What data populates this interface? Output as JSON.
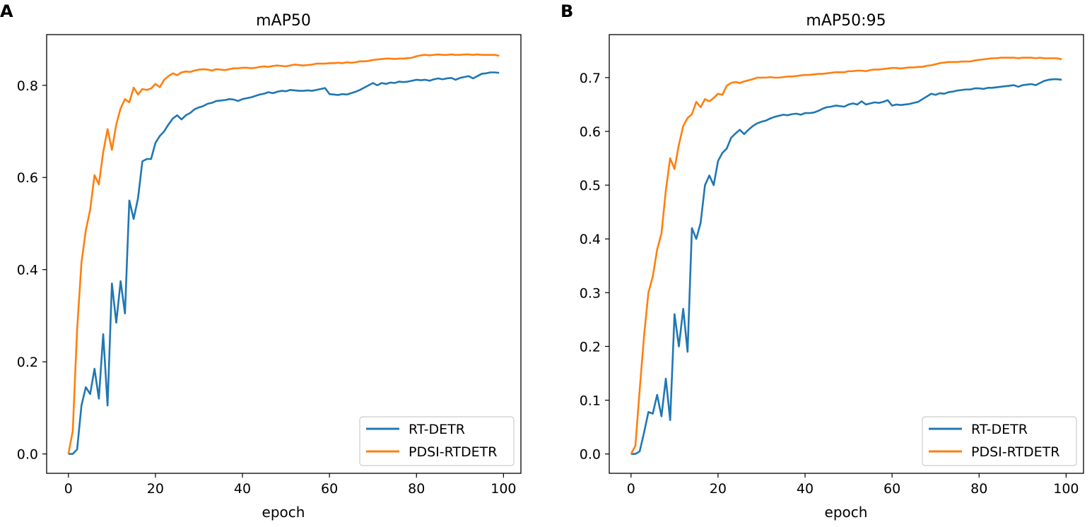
{
  "colors": {
    "rt_detr": "#1f77b4",
    "pdsi_rtdetr": "#ff7f0e",
    "axes": "#000000",
    "legend_border": "#cccccc"
  },
  "chart_data": [
    {
      "type": "line",
      "panel": "A",
      "title": "mAP50",
      "xlabel": "epoch",
      "ylabel": "",
      "xlim": [
        -5,
        104
      ],
      "ylim": [
        -0.042,
        0.91
      ],
      "xticks": [
        0,
        20,
        40,
        60,
        80,
        100
      ],
      "xtick_labels": [
        "0",
        "20",
        "40",
        "60",
        "80",
        "100"
      ],
      "yticks": [
        0.0,
        0.2,
        0.4,
        0.6,
        0.8
      ],
      "ytick_labels": [
        "0.0",
        "0.2",
        "0.4",
        "0.6",
        "0.8"
      ],
      "legend_position": "bottom-right",
      "grid": false,
      "series": [
        {
          "name": "RT-DETR",
          "color": "#1f77b4",
          "x": [
            0,
            1,
            2,
            3,
            4,
            5,
            6,
            7,
            8,
            9,
            10,
            11,
            12,
            13,
            14,
            15,
            16,
            17,
            18,
            19,
            20,
            21,
            22,
            23,
            24,
            25,
            26,
            27,
            28,
            29,
            30,
            31,
            32,
            33,
            34,
            35,
            36,
            37,
            38,
            39,
            40,
            41,
            42,
            43,
            44,
            45,
            46,
            47,
            48,
            49,
            50,
            51,
            52,
            53,
            54,
            55,
            56,
            57,
            58,
            59,
            60,
            61,
            62,
            63,
            64,
            65,
            66,
            67,
            68,
            69,
            70,
            71,
            72,
            73,
            74,
            75,
            76,
            77,
            78,
            79,
            80,
            81,
            82,
            83,
            84,
            85,
            86,
            87,
            88,
            89,
            90,
            91,
            92,
            93,
            94,
            95,
            96,
            97,
            98,
            99
          ],
          "values": [
            0,
            0,
            0.01,
            0.105,
            0.145,
            0.13,
            0.185,
            0.12,
            0.26,
            0.105,
            0.37,
            0.285,
            0.375,
            0.305,
            0.55,
            0.51,
            0.555,
            0.635,
            0.64,
            0.64,
            0.675,
            0.69,
            0.7,
            0.715,
            0.728,
            0.735,
            0.726,
            0.735,
            0.74,
            0.748,
            0.752,
            0.755,
            0.76,
            0.762,
            0.766,
            0.767,
            0.768,
            0.77,
            0.769,
            0.766,
            0.77,
            0.772,
            0.774,
            0.777,
            0.78,
            0.782,
            0.785,
            0.783,
            0.786,
            0.788,
            0.787,
            0.79,
            0.789,
            0.788,
            0.788,
            0.789,
            0.788,
            0.79,
            0.792,
            0.794,
            0.781,
            0.78,
            0.779,
            0.781,
            0.78,
            0.783,
            0.786,
            0.79,
            0.795,
            0.8,
            0.805,
            0.8,
            0.805,
            0.803,
            0.806,
            0.805,
            0.808,
            0.807,
            0.808,
            0.81,
            0.812,
            0.811,
            0.812,
            0.81,
            0.813,
            0.815,
            0.813,
            0.815,
            0.816,
            0.812,
            0.816,
            0.818,
            0.82,
            0.815,
            0.82,
            0.825,
            0.826,
            0.828,
            0.828,
            0.827
          ]
        },
        {
          "name": "PDSI-RTDETR",
          "color": "#ff7f0e",
          "x": [
            0,
            1,
            2,
            3,
            4,
            5,
            6,
            7,
            8,
            9,
            10,
            11,
            12,
            13,
            14,
            15,
            16,
            17,
            18,
            19,
            20,
            21,
            22,
            23,
            24,
            25,
            26,
            27,
            28,
            29,
            30,
            31,
            32,
            33,
            34,
            35,
            36,
            37,
            38,
            39,
            40,
            41,
            42,
            43,
            44,
            45,
            46,
            47,
            48,
            49,
            50,
            51,
            52,
            53,
            54,
            55,
            56,
            57,
            58,
            59,
            60,
            61,
            62,
            63,
            64,
            65,
            66,
            67,
            68,
            69,
            70,
            71,
            72,
            73,
            74,
            75,
            76,
            77,
            78,
            79,
            80,
            81,
            82,
            83,
            84,
            85,
            86,
            87,
            88,
            89,
            90,
            91,
            92,
            93,
            94,
            95,
            96,
            97,
            98,
            99
          ],
          "values": [
            0,
            0.05,
            0.27,
            0.415,
            0.485,
            0.53,
            0.605,
            0.585,
            0.655,
            0.705,
            0.66,
            0.715,
            0.75,
            0.77,
            0.763,
            0.795,
            0.78,
            0.792,
            0.79,
            0.793,
            0.803,
            0.796,
            0.812,
            0.82,
            0.826,
            0.822,
            0.828,
            0.83,
            0.829,
            0.832,
            0.834,
            0.835,
            0.834,
            0.832,
            0.835,
            0.834,
            0.833,
            0.835,
            0.837,
            0.837,
            0.838,
            0.838,
            0.837,
            0.838,
            0.84,
            0.841,
            0.84,
            0.842,
            0.843,
            0.842,
            0.841,
            0.843,
            0.845,
            0.844,
            0.843,
            0.844,
            0.845,
            0.847,
            0.847,
            0.847,
            0.848,
            0.848,
            0.849,
            0.848,
            0.85,
            0.849,
            0.85,
            0.852,
            0.852,
            0.853,
            0.855,
            0.856,
            0.857,
            0.858,
            0.858,
            0.857,
            0.858,
            0.858,
            0.859,
            0.86,
            0.863,
            0.865,
            0.866,
            0.865,
            0.866,
            0.867,
            0.866,
            0.866,
            0.867,
            0.866,
            0.866,
            0.867,
            0.867,
            0.866,
            0.867,
            0.866,
            0.866,
            0.866,
            0.866,
            0.864
          ]
        }
      ]
    },
    {
      "type": "line",
      "panel": "B",
      "title": "mAP50:95",
      "xlabel": "epoch",
      "ylabel": "",
      "xlim": [
        -5,
        104
      ],
      "ylim": [
        -0.036,
        0.78
      ],
      "xticks": [
        0,
        20,
        40,
        60,
        80,
        100
      ],
      "xtick_labels": [
        "0",
        "20",
        "40",
        "60",
        "80",
        "100"
      ],
      "yticks": [
        0.0,
        0.1,
        0.2,
        0.3,
        0.4,
        0.5,
        0.6,
        0.7
      ],
      "ytick_labels": [
        "0.0",
        "0.1",
        "0.2",
        "0.3",
        "0.4",
        "0.5",
        "0.6",
        "0.7"
      ],
      "legend_position": "bottom-right",
      "grid": false,
      "series": [
        {
          "name": "RT-DETR",
          "color": "#1f77b4",
          "x": [
            0,
            1,
            2,
            3,
            4,
            5,
            6,
            7,
            8,
            9,
            10,
            11,
            12,
            13,
            14,
            15,
            16,
            17,
            18,
            19,
            20,
            21,
            22,
            23,
            24,
            25,
            26,
            27,
            28,
            29,
            30,
            31,
            32,
            33,
            34,
            35,
            36,
            37,
            38,
            39,
            40,
            41,
            42,
            43,
            44,
            45,
            46,
            47,
            48,
            49,
            50,
            51,
            52,
            53,
            54,
            55,
            56,
            57,
            58,
            59,
            60,
            61,
            62,
            63,
            64,
            65,
            66,
            67,
            68,
            69,
            70,
            71,
            72,
            73,
            74,
            75,
            76,
            77,
            78,
            79,
            80,
            81,
            82,
            83,
            84,
            85,
            86,
            87,
            88,
            89,
            90,
            91,
            92,
            93,
            94,
            95,
            96,
            97,
            98,
            99
          ],
          "values": [
            0,
            0,
            0.005,
            0.04,
            0.078,
            0.075,
            0.11,
            0.07,
            0.14,
            0.063,
            0.26,
            0.2,
            0.27,
            0.19,
            0.42,
            0.4,
            0.43,
            0.5,
            0.518,
            0.5,
            0.545,
            0.56,
            0.568,
            0.588,
            0.596,
            0.603,
            0.595,
            0.603,
            0.61,
            0.615,
            0.618,
            0.62,
            0.624,
            0.627,
            0.629,
            0.631,
            0.63,
            0.632,
            0.633,
            0.631,
            0.634,
            0.634,
            0.635,
            0.638,
            0.642,
            0.645,
            0.646,
            0.648,
            0.647,
            0.646,
            0.65,
            0.652,
            0.65,
            0.656,
            0.65,
            0.652,
            0.654,
            0.653,
            0.655,
            0.658,
            0.648,
            0.65,
            0.649,
            0.65,
            0.651,
            0.653,
            0.655,
            0.66,
            0.665,
            0.67,
            0.668,
            0.671,
            0.67,
            0.673,
            0.674,
            0.676,
            0.677,
            0.678,
            0.678,
            0.68,
            0.68,
            0.679,
            0.681,
            0.681,
            0.682,
            0.683,
            0.684,
            0.685,
            0.686,
            0.683,
            0.686,
            0.687,
            0.688,
            0.686,
            0.69,
            0.694,
            0.696,
            0.697,
            0.697,
            0.696
          ]
        },
        {
          "name": "PDSI-RTDETR",
          "color": "#ff7f0e",
          "x": [
            0,
            1,
            2,
            3,
            4,
            5,
            6,
            7,
            8,
            9,
            10,
            11,
            12,
            13,
            14,
            15,
            16,
            17,
            18,
            19,
            20,
            21,
            22,
            23,
            24,
            25,
            26,
            27,
            28,
            29,
            30,
            31,
            32,
            33,
            34,
            35,
            36,
            37,
            38,
            39,
            40,
            41,
            42,
            43,
            44,
            45,
            46,
            47,
            48,
            49,
            50,
            51,
            52,
            53,
            54,
            55,
            56,
            57,
            58,
            59,
            60,
            61,
            62,
            63,
            64,
            65,
            66,
            67,
            68,
            69,
            70,
            71,
            72,
            73,
            74,
            75,
            76,
            77,
            78,
            79,
            80,
            81,
            82,
            83,
            84,
            85,
            86,
            87,
            88,
            89,
            90,
            91,
            92,
            93,
            94,
            95,
            96,
            97,
            98,
            99
          ],
          "values": [
            0,
            0.015,
            0.12,
            0.22,
            0.3,
            0.33,
            0.38,
            0.41,
            0.49,
            0.55,
            0.53,
            0.575,
            0.61,
            0.625,
            0.632,
            0.655,
            0.645,
            0.66,
            0.656,
            0.662,
            0.67,
            0.668,
            0.685,
            0.69,
            0.692,
            0.69,
            0.693,
            0.695,
            0.697,
            0.7,
            0.7,
            0.7,
            0.701,
            0.7,
            0.7,
            0.701,
            0.702,
            0.702,
            0.703,
            0.704,
            0.705,
            0.705,
            0.706,
            0.707,
            0.707,
            0.708,
            0.709,
            0.71,
            0.71,
            0.71,
            0.712,
            0.712,
            0.713,
            0.713,
            0.712,
            0.714,
            0.715,
            0.715,
            0.716,
            0.717,
            0.718,
            0.718,
            0.717,
            0.718,
            0.719,
            0.719,
            0.72,
            0.72,
            0.722,
            0.723,
            0.725,
            0.727,
            0.728,
            0.729,
            0.729,
            0.729,
            0.73,
            0.73,
            0.73,
            0.732,
            0.733,
            0.734,
            0.735,
            0.736,
            0.736,
            0.737,
            0.737,
            0.737,
            0.737,
            0.736,
            0.737,
            0.737,
            0.737,
            0.736,
            0.737,
            0.736,
            0.736,
            0.736,
            0.736,
            0.734
          ]
        }
      ]
    }
  ]
}
